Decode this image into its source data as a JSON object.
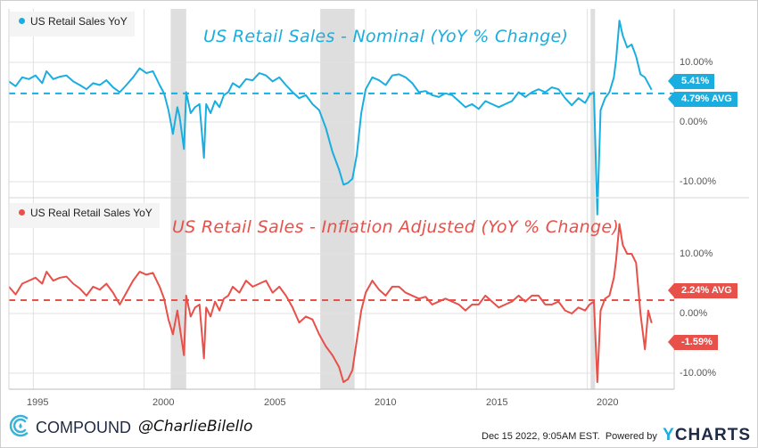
{
  "colors": {
    "nominal": "#1aaee0",
    "real": "#e8504a",
    "recession": "#dedede",
    "grid": "#e2e2e2",
    "text": "#555555"
  },
  "chart_data": [
    {
      "type": "line",
      "title": "US Retail Sales - Nominal (YoY % Change)",
      "legend": "US Retail Sales YoY",
      "legend_position": "top-left",
      "ylim": [
        -11,
        15.5
      ],
      "xlim": [
        1993.9,
        2022.9
      ],
      "y_ticks": [
        {
          "value": 10,
          "label": "10.00%"
        },
        {
          "value": 0,
          "label": "0.00%"
        },
        {
          "value": -10,
          "label": "-10.00%"
        }
      ],
      "x_ticks": [
        {
          "value": 1995,
          "label": "1995"
        },
        {
          "value": 2000,
          "label": "2000"
        },
        {
          "value": 2005,
          "label": "2005"
        },
        {
          "value": 2010,
          "label": "2010"
        },
        {
          "value": 2015,
          "label": "2015"
        },
        {
          "value": 2020,
          "label": "2020"
        }
      ],
      "average": {
        "value": 4.79,
        "label": "4.79% AVG"
      },
      "last": {
        "value": 5.41,
        "label": "5.41%"
      },
      "recessions": [
        [
          2001.2,
          2001.9
        ],
        [
          2007.95,
          2009.5
        ],
        [
          2020.15,
          2020.35
        ]
      ],
      "series": [
        {
          "name": "US Retail Sales YoY",
          "x": [
            1993.9,
            1994.2,
            1994.5,
            1994.8,
            1995.1,
            1995.4,
            1995.6,
            1995.9,
            1996.2,
            1996.5,
            1996.8,
            1997.1,
            1997.4,
            1997.7,
            1998.0,
            1998.3,
            1998.6,
            1998.9,
            1999.2,
            1999.5,
            1999.8,
            2000.1,
            2000.4,
            2000.7,
            2000.9,
            2001.1,
            2001.3,
            2001.5,
            2001.6,
            2001.8,
            2001.9,
            2002.1,
            2002.3,
            2002.5,
            2002.7,
            2002.8,
            2003.0,
            2003.2,
            2003.4,
            2003.6,
            2003.8,
            2004.0,
            2004.3,
            2004.6,
            2004.9,
            2005.2,
            2005.5,
            2005.8,
            2006.1,
            2006.4,
            2006.7,
            2007.0,
            2007.3,
            2007.6,
            2007.9,
            2008.2,
            2008.5,
            2008.8,
            2009.0,
            2009.2,
            2009.4,
            2009.6,
            2009.8,
            2010.0,
            2010.3,
            2010.6,
            2010.9,
            2011.2,
            2011.5,
            2011.8,
            2012.1,
            2012.4,
            2012.7,
            2013.0,
            2013.3,
            2013.6,
            2013.9,
            2014.2,
            2014.5,
            2014.8,
            2015.1,
            2015.4,
            2015.7,
            2016.0,
            2016.3,
            2016.6,
            2016.9,
            2017.2,
            2017.5,
            2017.8,
            2018.1,
            2018.4,
            2018.7,
            2019.0,
            2019.3,
            2019.6,
            2019.9,
            2020.1,
            2020.3,
            2020.45,
            2020.6,
            2020.8,
            2021.0,
            2021.2,
            2021.3,
            2021.45,
            2021.6,
            2021.8,
            2022.0,
            2022.2,
            2022.4,
            2022.6,
            2022.9
          ],
          "values": [
            6.8,
            6.0,
            7.5,
            7.2,
            7.8,
            6.5,
            8.5,
            7.2,
            7.6,
            7.8,
            6.8,
            6.2,
            5.5,
            6.5,
            6.2,
            7.0,
            5.8,
            5.0,
            6.2,
            7.5,
            9.0,
            8.2,
            8.5,
            6.2,
            4.8,
            2.0,
            -2.0,
            2.5,
            1.0,
            -4.5,
            5.0,
            1.5,
            2.5,
            3.0,
            -6.0,
            3.0,
            1.5,
            3.5,
            2.5,
            4.5,
            5.0,
            6.5,
            5.8,
            7.2,
            7.0,
            8.2,
            7.8,
            6.8,
            7.5,
            6.2,
            5.0,
            4.0,
            4.5,
            3.0,
            2.0,
            -1.0,
            -5.0,
            -8.0,
            -10.5,
            -10.2,
            -9.5,
            -5.5,
            1.5,
            5.5,
            7.5,
            7.0,
            6.2,
            7.8,
            8.0,
            7.5,
            6.5,
            5.0,
            5.2,
            4.5,
            4.2,
            4.8,
            4.5,
            3.5,
            2.5,
            3.0,
            2.2,
            3.5,
            3.0,
            2.5,
            3.0,
            3.5,
            5.0,
            4.2,
            5.0,
            5.5,
            5.0,
            5.8,
            5.5,
            4.0,
            2.8,
            4.0,
            3.2,
            4.5,
            5.0,
            -15.5,
            2.0,
            4.0,
            5.0,
            7.5,
            10.5,
            17.0,
            14.5,
            12.5,
            13.0,
            11.0,
            8.0,
            7.5,
            5.41
          ]
        }
      ]
    },
    {
      "type": "line",
      "title": "US Retail Sales - Inflation Adjusted (YoY % Change)",
      "legend": "US Real Retail Sales YoY",
      "legend_position": "top-left",
      "ylim": [
        -12.5,
        13.5
      ],
      "xlim": [
        1993.9,
        2022.9
      ],
      "y_ticks": [
        {
          "value": 10,
          "label": "10.00%"
        },
        {
          "value": 0,
          "label": "0.00%"
        },
        {
          "value": -10,
          "label": "-10.00%"
        }
      ],
      "x_ticks": [
        {
          "value": 1995,
          "label": "1995"
        },
        {
          "value": 2000,
          "label": "2000"
        },
        {
          "value": 2005,
          "label": "2005"
        },
        {
          "value": 2010,
          "label": "2010"
        },
        {
          "value": 2015,
          "label": "2015"
        },
        {
          "value": 2020,
          "label": "2020"
        }
      ],
      "average": {
        "value": 2.24,
        "label": "2.24% AVG"
      },
      "last": {
        "value": -1.59,
        "label": "-1.59%"
      },
      "recessions": [
        [
          2001.2,
          2001.9
        ],
        [
          2007.95,
          2009.5
        ],
        [
          2020.15,
          2020.35
        ]
      ],
      "series": [
        {
          "name": "US Real Retail Sales YoY",
          "x": [
            1993.9,
            1994.2,
            1994.5,
            1994.8,
            1995.1,
            1995.4,
            1995.6,
            1995.9,
            1996.2,
            1996.5,
            1996.8,
            1997.1,
            1997.4,
            1997.7,
            1998.0,
            1998.3,
            1998.6,
            1998.9,
            1999.2,
            1999.5,
            1999.8,
            2000.1,
            2000.4,
            2000.7,
            2000.9,
            2001.1,
            2001.3,
            2001.5,
            2001.6,
            2001.8,
            2001.9,
            2002.1,
            2002.3,
            2002.5,
            2002.7,
            2002.8,
            2003.0,
            2003.2,
            2003.4,
            2003.6,
            2003.8,
            2004.0,
            2004.3,
            2004.6,
            2004.9,
            2005.2,
            2005.5,
            2005.8,
            2006.1,
            2006.4,
            2006.7,
            2007.0,
            2007.3,
            2007.6,
            2007.9,
            2008.2,
            2008.5,
            2008.8,
            2009.0,
            2009.2,
            2009.4,
            2009.6,
            2009.8,
            2010.0,
            2010.3,
            2010.6,
            2010.9,
            2011.2,
            2011.5,
            2011.8,
            2012.1,
            2012.4,
            2012.7,
            2013.0,
            2013.3,
            2013.6,
            2013.9,
            2014.2,
            2014.5,
            2014.8,
            2015.1,
            2015.4,
            2015.7,
            2016.0,
            2016.3,
            2016.6,
            2016.9,
            2017.2,
            2017.5,
            2017.8,
            2018.1,
            2018.4,
            2018.7,
            2019.0,
            2019.3,
            2019.6,
            2019.9,
            2020.1,
            2020.3,
            2020.45,
            2020.6,
            2020.8,
            2021.0,
            2021.2,
            2021.3,
            2021.45,
            2021.6,
            2021.8,
            2022.0,
            2022.2,
            2022.4,
            2022.6,
            2022.75,
            2022.9
          ],
          "values": [
            4.5,
            3.2,
            5.0,
            5.5,
            6.0,
            5.0,
            7.0,
            5.5,
            6.0,
            6.2,
            5.0,
            4.2,
            3.0,
            4.5,
            4.0,
            5.0,
            3.5,
            1.5,
            3.5,
            5.5,
            7.0,
            6.5,
            6.8,
            4.5,
            2.5,
            -1.0,
            -3.5,
            0.5,
            -2.0,
            -7.0,
            3.0,
            -0.5,
            1.0,
            1.5,
            -7.5,
            1.0,
            -0.5,
            2.0,
            0.5,
            2.5,
            3.0,
            4.5,
            3.5,
            5.5,
            4.5,
            5.0,
            5.5,
            3.5,
            4.5,
            3.0,
            1.0,
            -1.5,
            -0.5,
            -1.0,
            -3.5,
            -5.5,
            -7.0,
            -9.0,
            -11.5,
            -11.0,
            -9.5,
            -4.5,
            0.5,
            3.5,
            5.5,
            4.0,
            3.0,
            4.5,
            4.5,
            3.5,
            3.0,
            2.5,
            2.8,
            1.5,
            2.0,
            2.5,
            2.0,
            1.5,
            0.5,
            1.5,
            1.5,
            3.0,
            2.0,
            1.0,
            1.5,
            2.0,
            3.0,
            2.0,
            3.0,
            3.0,
            1.5,
            1.5,
            2.0,
            0.5,
            0.0,
            1.0,
            0.5,
            1.5,
            2.0,
            -11.5,
            0.5,
            2.5,
            3.0,
            6.0,
            9.0,
            15.0,
            11.5,
            10.0,
            10.0,
            8.5,
            0.0,
            -6.0,
            0.5,
            -1.59
          ]
        }
      ]
    }
  ],
  "footer": {
    "brand": "COMPOUND",
    "handle": "@CharlieBilello",
    "timestamp": "Dec 15 2022, 9:05AM EST.",
    "powered_by": "Powered by",
    "ycharts_y": "Y",
    "ycharts_rest": "CHARTS"
  }
}
